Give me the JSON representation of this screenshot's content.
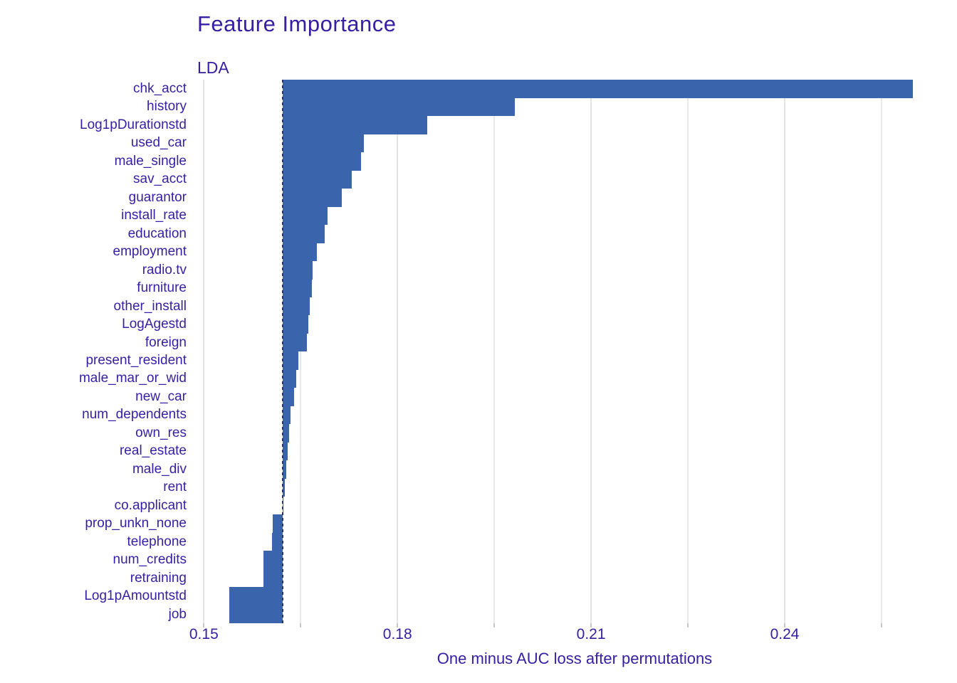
{
  "title": "Feature Importance",
  "subtitle": "LDA",
  "colors": {
    "text": "#371ea3",
    "bar": "#3a65ac",
    "grid_major": "#e4e4e4",
    "grid_minor": "#e8e8e8",
    "tick_stub": "#c9c9c9",
    "baseline_dash": "#2b3266",
    "background": "#ffffff"
  },
  "chart_data": {
    "type": "bar",
    "orientation": "horizontal",
    "title": "Feature Importance",
    "subtitle": "LDA",
    "xlabel": "One minus AUC loss after permutations",
    "legend_position": "none",
    "grid": "vertical-only",
    "baseline_full_model_loss": 0.1622,
    "xlim": [
      0.1482,
      0.2667
    ],
    "x_ticks": [
      0.15,
      0.18,
      0.21,
      0.24
    ],
    "x_minor_gridlines": [
      0.165,
      0.195,
      0.225,
      0.255
    ],
    "categories": [
      "chk_acct",
      "history",
      "Log1pDurationstd",
      "used_car",
      "male_single",
      "sav_acct",
      "guarantor",
      "install_rate",
      "education",
      "employment",
      "radio.tv",
      "furniture",
      "other_install",
      "LogAgestd",
      "foreign",
      "present_resident",
      "male_mar_or_wid",
      "new_car",
      "num_dependents",
      "own_res",
      "real_estate",
      "male_div",
      "rent",
      "co.applicant",
      "prop_unkn_none",
      "telephone",
      "num_credits",
      "retraining",
      "Log1pAmountstd",
      "job"
    ],
    "values": [
      0.2599,
      0.1982,
      0.1846,
      0.1748,
      0.1744,
      0.1729,
      0.1714,
      0.1692,
      0.1687,
      0.1675,
      0.1669,
      0.1667,
      0.1664,
      0.1662,
      0.166,
      0.1646,
      0.1643,
      0.164,
      0.1634,
      0.1632,
      0.163,
      0.1628,
      0.1625,
      0.1623,
      0.1607,
      0.1606,
      0.1592,
      0.1592,
      0.1539,
      0.1539
    ]
  }
}
